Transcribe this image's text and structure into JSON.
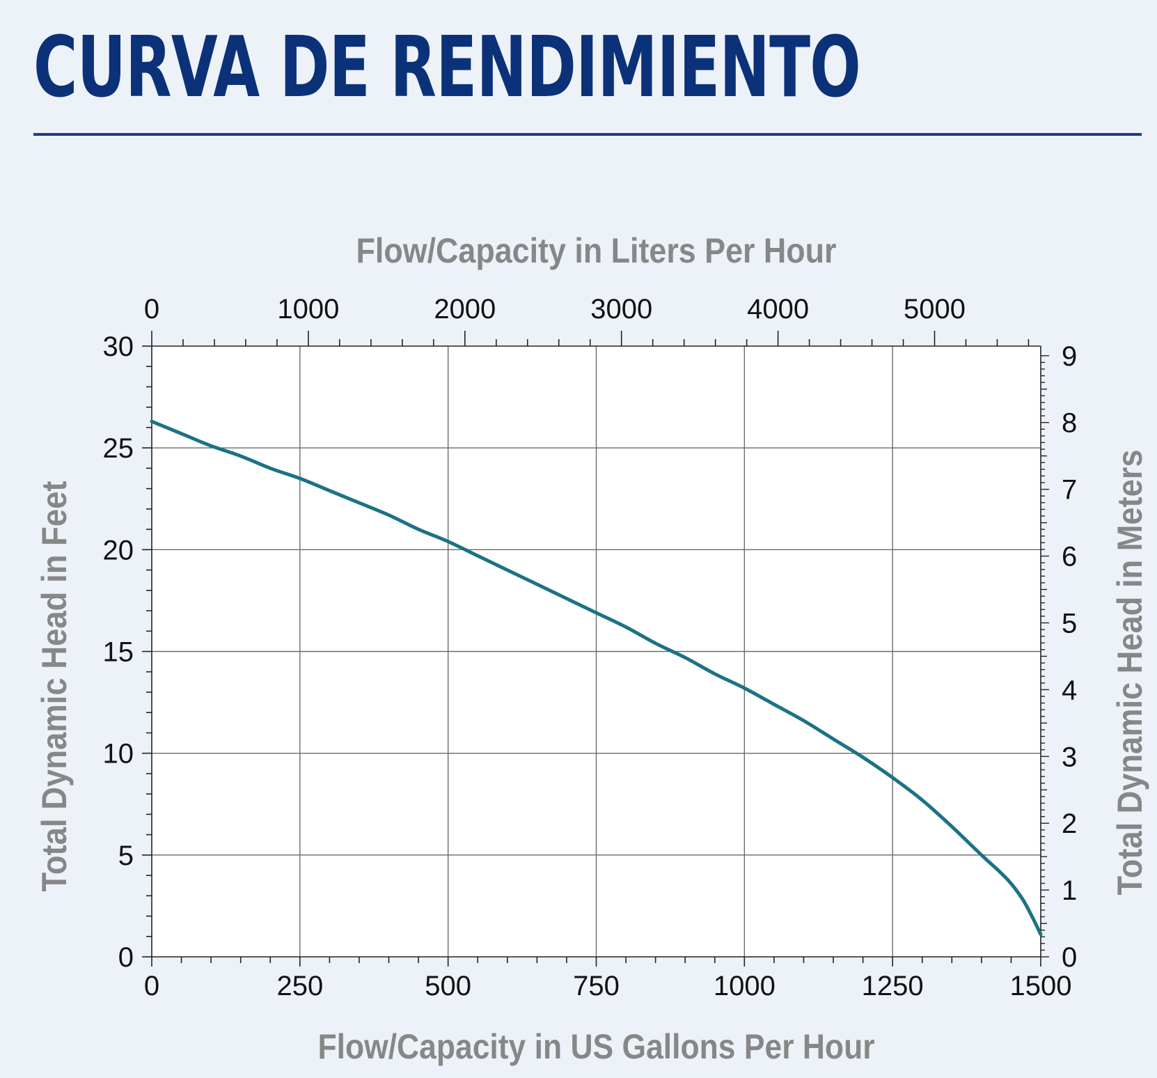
{
  "page": {
    "title": "CURVA DE RENDIMIENTO"
  },
  "chart_data": {
    "type": "line",
    "title": "",
    "xlabel": "Flow/Capacity in US Gallons Per Hour",
    "ylabel": "Total Dynamic Head in Feet",
    "x2label": "Flow/Capacity in Liters Per Hour",
    "y2label": "Total Dynamic Head in Meters",
    "xlim": [
      0,
      1500
    ],
    "ylim": [
      0,
      30
    ],
    "x2lim": [
      0,
      5678
    ],
    "y2lim": [
      0,
      9.144
    ],
    "x_ticks": [
      "0",
      "250",
      "500",
      "750",
      "1000",
      "1250",
      "1500"
    ],
    "y_ticks": [
      "0",
      "5",
      "10",
      "15",
      "20",
      "25",
      "30"
    ],
    "x2_ticks": [
      "0",
      "1000",
      "2000",
      "3000",
      "4000",
      "5000"
    ],
    "y2_ticks": [
      "0",
      "1",
      "2",
      "3",
      "4",
      "5",
      "6",
      "7",
      "8",
      "9"
    ],
    "grid": true,
    "series": [
      {
        "color": "#1b7285",
        "x": [
          0,
          50,
          100,
          150,
          200,
          250,
          300,
          350,
          400,
          450,
          500,
          550,
          600,
          650,
          700,
          750,
          800,
          850,
          900,
          950,
          1000,
          1050,
          1100,
          1150,
          1200,
          1250,
          1300,
          1350,
          1400,
          1430,
          1450,
          1470,
          1485,
          1500
        ],
        "y": [
          26.3,
          25.7,
          25.1,
          24.6,
          24.0,
          23.5,
          22.9,
          22.3,
          21.7,
          21.0,
          20.4,
          19.7,
          19.0,
          18.3,
          17.6,
          16.9,
          16.2,
          15.4,
          14.7,
          13.9,
          13.2,
          12.4,
          11.6,
          10.7,
          9.8,
          8.8,
          7.7,
          6.4,
          5.0,
          4.2,
          3.6,
          2.8,
          2.0,
          1.1
        ]
      }
    ]
  }
}
